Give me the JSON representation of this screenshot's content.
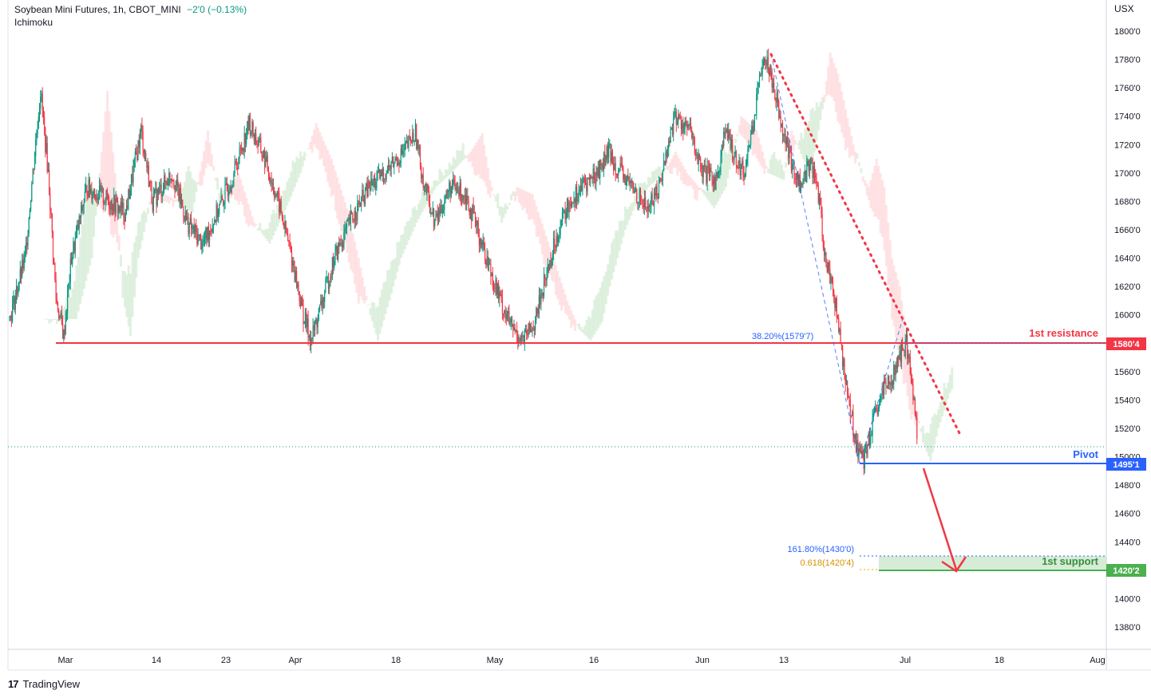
{
  "header": {
    "title": "Soybean Mini Futures, 1h, CBOT_MINI",
    "change": "−2'0 (−0.13%)",
    "indicator": "Ichimoku"
  },
  "axis": {
    "currency": "USX"
  },
  "footer": {
    "brand": "TradingView",
    "logo": "17"
  },
  "colors": {
    "resistance": "#f23645",
    "pivot": "#2962ff",
    "support": "#4caf50",
    "fib": "#2962ff",
    "fib_gold": "#f0a30a",
    "up": "#089981",
    "down": "#f23645",
    "cloud_green": "#c8e6c9",
    "cloud_red": "#ffcdd2"
  },
  "chart_data": {
    "type": "candlestick",
    "title": "Soybean Mini Futures, 1h, CBOT_MINI",
    "ylim": [
      1370,
      1810
    ],
    "y_ticks": [
      "1800'0",
      "1780'0",
      "1760'0",
      "1740'0",
      "1720'0",
      "1700'0",
      "1680'0",
      "1660'0",
      "1640'0",
      "1620'0",
      "1600'0",
      "1580'0",
      "1560'0",
      "1540'0",
      "1520'0",
      "1500'0",
      "1480'0",
      "1460'0",
      "1440'0",
      "1420'0",
      "1400'0",
      "1380'0"
    ],
    "x_ticks": [
      "Mar",
      "14",
      "23",
      "Apr",
      "18",
      "May",
      "16",
      "Jun",
      "13",
      "Jul",
      "18",
      "Aug"
    ],
    "price_path": [
      [
        0,
        1597
      ],
      [
        4,
        1640
      ],
      [
        6,
        1700
      ],
      [
        8,
        1758
      ],
      [
        10,
        1700
      ],
      [
        12,
        1612
      ],
      [
        14,
        1585
      ],
      [
        16,
        1640
      ],
      [
        20,
        1690
      ],
      [
        26,
        1680
      ],
      [
        30,
        1672
      ],
      [
        34,
        1730
      ],
      [
        37,
        1680
      ],
      [
        42,
        1700
      ],
      [
        46,
        1665
      ],
      [
        50,
        1650
      ],
      [
        55,
        1680
      ],
      [
        58,
        1700
      ],
      [
        62,
        1735
      ],
      [
        66,
        1710
      ],
      [
        70,
        1675
      ],
      [
        73,
        1640
      ],
      [
        76,
        1600
      ],
      [
        78,
        1582
      ],
      [
        81,
        1610
      ],
      [
        84,
        1640
      ],
      [
        88,
        1665
      ],
      [
        93,
        1690
      ],
      [
        97,
        1700
      ],
      [
        102,
        1715
      ],
      [
        105,
        1728
      ],
      [
        107,
        1695
      ],
      [
        110,
        1665
      ],
      [
        114,
        1690
      ],
      [
        118,
        1685
      ],
      [
        121,
        1660
      ],
      [
        124,
        1635
      ],
      [
        127,
        1610
      ],
      [
        130,
        1590
      ],
      [
        133,
        1582
      ],
      [
        136,
        1595
      ],
      [
        138,
        1620
      ],
      [
        142,
        1660
      ],
      [
        145,
        1680
      ],
      [
        148,
        1690
      ],
      [
        152,
        1700
      ],
      [
        155,
        1715
      ],
      [
        158,
        1700
      ],
      [
        161,
        1690
      ],
      [
        165,
        1675
      ],
      [
        168,
        1690
      ],
      [
        172,
        1740
      ],
      [
        176,
        1730
      ],
      [
        179,
        1700
      ],
      [
        183,
        1695
      ],
      [
        185,
        1730
      ],
      [
        188,
        1710
      ],
      [
        190,
        1700
      ],
      [
        193,
        1745
      ],
      [
        195,
        1785
      ],
      [
        197,
        1770
      ],
      [
        199,
        1745
      ],
      [
        201,
        1720
      ],
      [
        203,
        1700
      ],
      [
        205,
        1690
      ],
      [
        207,
        1710
      ],
      [
        209,
        1690
      ],
      [
        211,
        1640
      ],
      [
        213,
        1620
      ],
      [
        215,
        1580
      ],
      [
        217,
        1540
      ],
      [
        219,
        1510
      ],
      [
        221,
        1497
      ],
      [
        223,
        1520
      ],
      [
        226,
        1545
      ],
      [
        229,
        1560
      ],
      [
        231,
        1575
      ],
      [
        232,
        1580
      ],
      [
        233,
        1560
      ],
      [
        234,
        1540
      ],
      [
        235,
        1510
      ]
    ],
    "levels": [
      {
        "name": "1st resistance",
        "value": "1580'4",
        "price": 1580.5
      },
      {
        "name": "Pivot",
        "value": "1495'1",
        "price": 1495.1
      },
      {
        "name": "1st support",
        "value": "1420'2",
        "price": 1420.25
      }
    ],
    "fib_labels": [
      {
        "text": "38.20%(1579'7)",
        "price": 1579.9
      },
      {
        "text": "161.80%(1430'0)",
        "price": 1430.0
      },
      {
        "text": "0.618(1420'4)",
        "price": 1420.5
      }
    ],
    "last_price": 1508,
    "annotations": [
      "1st resistance",
      "Pivot",
      "1st support"
    ]
  }
}
